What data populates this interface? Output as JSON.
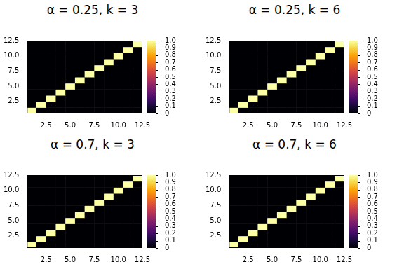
{
  "chart_data": [
    {
      "type": "heatmap",
      "title": "α = 0.25, k = 3",
      "color": "inferno",
      "x": [
        1,
        2,
        3,
        4,
        5,
        6,
        7,
        8,
        9,
        10,
        11,
        12
      ],
      "y": [
        1,
        2,
        3,
        4,
        5,
        6,
        7,
        8,
        9,
        10,
        11,
        12
      ],
      "cells": [
        [
          1,
          0,
          0,
          0,
          0,
          0,
          0,
          0,
          0,
          0,
          0,
          0
        ],
        [
          0,
          1,
          0,
          0,
          0,
          0,
          0,
          0,
          0,
          0,
          0,
          0
        ],
        [
          0,
          0,
          1,
          0,
          0,
          0,
          0,
          0,
          0,
          0,
          0,
          0
        ],
        [
          0,
          0,
          0,
          1,
          0,
          0,
          0,
          0,
          0,
          0,
          0,
          0
        ],
        [
          0,
          0,
          0,
          0,
          1,
          0,
          0,
          0,
          0,
          0,
          0,
          0
        ],
        [
          0,
          0,
          0,
          0,
          0,
          1,
          0,
          0,
          0,
          0,
          0,
          0
        ],
        [
          0,
          0,
          0,
          0,
          0,
          0,
          1,
          0,
          0,
          0,
          0,
          0
        ],
        [
          0,
          0,
          0,
          0,
          0,
          0,
          0,
          1,
          0,
          0,
          0,
          0
        ],
        [
          0,
          0,
          0,
          0,
          0,
          0,
          0,
          0,
          1,
          0,
          0,
          0
        ],
        [
          0,
          0,
          0,
          0,
          0,
          0,
          0,
          0,
          0,
          1,
          0,
          0
        ],
        [
          0,
          0,
          0,
          0,
          0,
          0,
          0,
          0,
          0,
          0,
          1,
          0
        ],
        [
          0,
          0,
          0,
          0,
          0,
          0,
          0,
          0,
          0,
          0,
          0,
          1
        ]
      ],
      "xlim": [
        0.5,
        12.5
      ],
      "ylim": [
        0.5,
        12.5
      ],
      "xticks": [
        2.5,
        {
          "value": 5,
          "label": "5.0"
        },
        7.5,
        {
          "value": 10,
          "label": "10.0"
        },
        12.5
      ],
      "yticks": [
        2.5,
        {
          "value": 5,
          "label": "5.0"
        },
        7.5,
        {
          "value": 10,
          "label": "10.0"
        },
        12.5
      ],
      "colorbar_range": [
        0,
        1
      ],
      "colorbar_ticks": [
        0,
        0.1,
        0.2,
        0.3,
        0.4,
        0.5,
        0.6,
        0.7,
        0.8,
        0.9,
        {
          "value": 1,
          "label": "1.0"
        }
      ]
    },
    {
      "type": "heatmap",
      "title": "α = 0.25, k = 6",
      "color": "inferno",
      "x": [
        1,
        2,
        3,
        4,
        5,
        6,
        7,
        8,
        9,
        10,
        11,
        12
      ],
      "y": [
        1,
        2,
        3,
        4,
        5,
        6,
        7,
        8,
        9,
        10,
        11,
        12
      ],
      "cells": [
        [
          1,
          0,
          0,
          0,
          0,
          0,
          0,
          0,
          0,
          0,
          0,
          0
        ],
        [
          0,
          1,
          0,
          0,
          0,
          0,
          0,
          0,
          0,
          0,
          0,
          0
        ],
        [
          0,
          0,
          1,
          0,
          0,
          0,
          0,
          0,
          0,
          0,
          0,
          0
        ],
        [
          0,
          0,
          0,
          1,
          0,
          0,
          0,
          0,
          0,
          0,
          0,
          0
        ],
        [
          0,
          0,
          0,
          0,
          1,
          0,
          0,
          0,
          0,
          0,
          0,
          0
        ],
        [
          0,
          0,
          0,
          0,
          0,
          1,
          0,
          0,
          0,
          0,
          0,
          0
        ],
        [
          0,
          0,
          0,
          0,
          0,
          0,
          1,
          0,
          0,
          0,
          0,
          0
        ],
        [
          0,
          0,
          0,
          0,
          0,
          0,
          0,
          1,
          0,
          0,
          0,
          0
        ],
        [
          0,
          0,
          0,
          0,
          0,
          0,
          0,
          0,
          1,
          0,
          0,
          0
        ],
        [
          0,
          0,
          0,
          0,
          0,
          0,
          0,
          0,
          0,
          1,
          0,
          0
        ],
        [
          0,
          0,
          0,
          0,
          0,
          0,
          0,
          0,
          0,
          0,
          1,
          0
        ],
        [
          0,
          0,
          0,
          0,
          0,
          0,
          0,
          0,
          0,
          0,
          0,
          1
        ]
      ],
      "xlim": [
        0.5,
        12.5
      ],
      "ylim": [
        0.5,
        12.5
      ],
      "xticks": [
        2.5,
        {
          "value": 5,
          "label": "5.0"
        },
        7.5,
        {
          "value": 10,
          "label": "10.0"
        },
        12.5
      ],
      "yticks": [
        2.5,
        {
          "value": 5,
          "label": "5.0"
        },
        7.5,
        {
          "value": 10,
          "label": "10.0"
        },
        12.5
      ],
      "colorbar_range": [
        0,
        1
      ],
      "colorbar_ticks": [
        0,
        0.1,
        0.2,
        0.3,
        0.4,
        0.5,
        0.6,
        0.7,
        0.8,
        0.9,
        {
          "value": 1,
          "label": "1.0"
        }
      ]
    },
    {
      "type": "heatmap",
      "title": "α = 0.7, k = 3",
      "color": "inferno",
      "x": [
        1,
        2,
        3,
        4,
        5,
        6,
        7,
        8,
        9,
        10,
        11,
        12
      ],
      "y": [
        1,
        2,
        3,
        4,
        5,
        6,
        7,
        8,
        9,
        10,
        11,
        12
      ],
      "cells": [
        [
          1,
          0,
          0,
          0,
          0,
          0,
          0,
          0,
          0,
          0,
          0,
          0
        ],
        [
          0,
          1,
          0,
          0,
          0,
          0,
          0,
          0,
          0,
          0,
          0,
          0
        ],
        [
          0,
          0,
          1,
          0,
          0,
          0,
          0,
          0,
          0,
          0,
          0,
          0
        ],
        [
          0,
          0,
          0,
          1,
          0,
          0,
          0,
          0,
          0,
          0,
          0,
          0
        ],
        [
          0,
          0,
          0,
          0,
          1,
          0,
          0,
          0,
          0,
          0,
          0,
          0
        ],
        [
          0,
          0,
          0,
          0,
          0,
          1,
          0,
          0,
          0,
          0,
          0,
          0
        ],
        [
          0,
          0,
          0,
          0,
          0,
          0,
          1,
          0,
          0,
          0,
          0,
          0
        ],
        [
          0,
          0,
          0,
          0,
          0,
          0,
          0,
          1,
          0,
          0,
          0,
          0
        ],
        [
          0,
          0,
          0,
          0,
          0,
          0,
          0,
          0,
          1,
          0,
          0,
          0
        ],
        [
          0,
          0,
          0,
          0,
          0,
          0,
          0,
          0,
          0,
          1,
          0,
          0
        ],
        [
          0,
          0,
          0,
          0,
          0,
          0,
          0,
          0,
          0,
          0,
          1,
          0
        ],
        [
          0,
          0,
          0,
          0,
          0,
          0,
          0,
          0,
          0,
          0,
          0,
          1
        ]
      ],
      "xlim": [
        0.5,
        12.5
      ],
      "ylim": [
        0.5,
        12.5
      ],
      "xticks": [
        2.5,
        {
          "value": 5,
          "label": "5.0"
        },
        7.5,
        {
          "value": 10,
          "label": "10.0"
        },
        12.5
      ],
      "yticks": [
        2.5,
        {
          "value": 5,
          "label": "5.0"
        },
        7.5,
        {
          "value": 10,
          "label": "10.0"
        },
        12.5
      ],
      "colorbar_range": [
        0,
        1
      ],
      "colorbar_ticks": [
        0,
        0.1,
        0.2,
        0.3,
        0.4,
        0.5,
        0.6,
        0.7,
        0.8,
        0.9,
        {
          "value": 1,
          "label": "1.0"
        }
      ]
    },
    {
      "type": "heatmap",
      "title": "α = 0.7, k = 6",
      "color": "inferno",
      "x": [
        1,
        2,
        3,
        4,
        5,
        6,
        7,
        8,
        9,
        10,
        11,
        12
      ],
      "y": [
        1,
        2,
        3,
        4,
        5,
        6,
        7,
        8,
        9,
        10,
        11,
        12
      ],
      "cells": [
        [
          1,
          0,
          0,
          0,
          0,
          0,
          0,
          0,
          0,
          0,
          0,
          0
        ],
        [
          0,
          1,
          0,
          0,
          0,
          0,
          0,
          0,
          0,
          0,
          0,
          0
        ],
        [
          0,
          0,
          1,
          0,
          0,
          0,
          0,
          0,
          0,
          0,
          0,
          0
        ],
        [
          0,
          0,
          0,
          1,
          0,
          0,
          0,
          0,
          0,
          0,
          0,
          0
        ],
        [
          0,
          0,
          0,
          0,
          1,
          0,
          0,
          0,
          0,
          0,
          0,
          0
        ],
        [
          0,
          0,
          0,
          0,
          0,
          1,
          0,
          0,
          0,
          0,
          0,
          0
        ],
        [
          0,
          0,
          0,
          0,
          0,
          0,
          1,
          0,
          0,
          0,
          0,
          0
        ],
        [
          0,
          0,
          0,
          0,
          0,
          0,
          0,
          1,
          0,
          0,
          0,
          0
        ],
        [
          0,
          0,
          0,
          0,
          0,
          0,
          0,
          0,
          1,
          0,
          0,
          0
        ],
        [
          0,
          0,
          0,
          0,
          0,
          0,
          0,
          0,
          0,
          1,
          0,
          0
        ],
        [
          0,
          0,
          0,
          0,
          0,
          0,
          0,
          0,
          0,
          0,
          1,
          0
        ],
        [
          0,
          0,
          0,
          0,
          0,
          0,
          0,
          0,
          0,
          0,
          0,
          1
        ]
      ],
      "xlim": [
        0.5,
        12.5
      ],
      "ylim": [
        0.5,
        12.5
      ],
      "xticks": [
        2.5,
        {
          "value": 5,
          "label": "5.0"
        },
        7.5,
        {
          "value": 10,
          "label": "10.0"
        },
        12.5
      ],
      "yticks": [
        2.5,
        {
          "value": 5,
          "label": "5.0"
        },
        7.5,
        {
          "value": 10,
          "label": "10.0"
        },
        12.5
      ],
      "colorbar_range": [
        0,
        1
      ],
      "colorbar_ticks": [
        0,
        0.1,
        0.2,
        0.3,
        0.4,
        0.5,
        0.6,
        0.7,
        0.8,
        0.9,
        {
          "value": 1,
          "label": "1.0"
        }
      ]
    }
  ]
}
